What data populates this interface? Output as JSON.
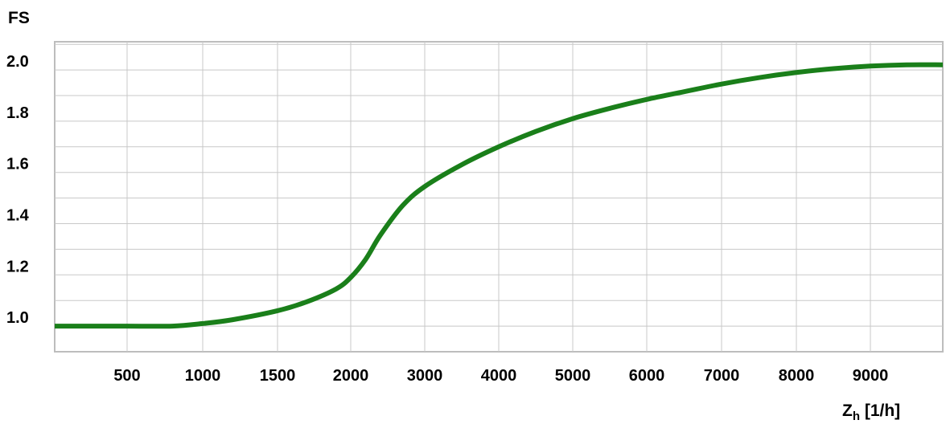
{
  "chart_data": {
    "type": "line",
    "title": "",
    "ylabel": "FS",
    "xlabel": {
      "main": "Z",
      "sub": "h",
      "unit": " [1/h]"
    },
    "ylim": [
      0.9,
      2.11
    ],
    "grid": true,
    "y_ticks": [
      {
        "label": "1.0",
        "value": 1.0
      },
      {
        "label": "1.2",
        "value": 1.2
      },
      {
        "label": "1.4",
        "value": 1.4
      },
      {
        "label": "1.6",
        "value": 1.6
      },
      {
        "label": "1.8",
        "value": 1.8
      },
      {
        "label": "2.0",
        "value": 2.0
      }
    ],
    "x_ticks": [
      {
        "label": "500",
        "value": 500
      },
      {
        "label": "1000",
        "value": 1000
      },
      {
        "label": "1500",
        "value": 1500
      },
      {
        "label": "2000",
        "value": 2000
      },
      {
        "label": "3000",
        "value": 3000
      },
      {
        "label": "4000",
        "value": 4000
      },
      {
        "label": "5000",
        "value": 5000
      },
      {
        "label": "6000",
        "value": 6000
      },
      {
        "label": "7000",
        "value": 7000
      },
      {
        "label": "8000",
        "value": 8000
      },
      {
        "label": "9000",
        "value": 9000
      }
    ],
    "series": [
      {
        "color": "#1a7f1a",
        "points": [
          [
            0,
            1.0
          ],
          [
            500,
            1.0
          ],
          [
            800,
            1.0
          ],
          [
            1000,
            1.01
          ],
          [
            1200,
            1.025
          ],
          [
            1500,
            1.06
          ],
          [
            1700,
            1.095
          ],
          [
            1900,
            1.145
          ],
          [
            2000,
            1.19
          ],
          [
            2200,
            1.26
          ],
          [
            2400,
            1.355
          ],
          [
            2700,
            1.47
          ],
          [
            3000,
            1.545
          ],
          [
            3500,
            1.63
          ],
          [
            4000,
            1.7
          ],
          [
            4500,
            1.76
          ],
          [
            5000,
            1.81
          ],
          [
            5500,
            1.85
          ],
          [
            6000,
            1.885
          ],
          [
            6500,
            1.915
          ],
          [
            7000,
            1.945
          ],
          [
            7500,
            1.97
          ],
          [
            8000,
            1.99
          ],
          [
            8500,
            2.005
          ],
          [
            9000,
            2.015
          ],
          [
            9500,
            2.02
          ],
          [
            10000,
            2.02
          ]
        ]
      }
    ]
  }
}
